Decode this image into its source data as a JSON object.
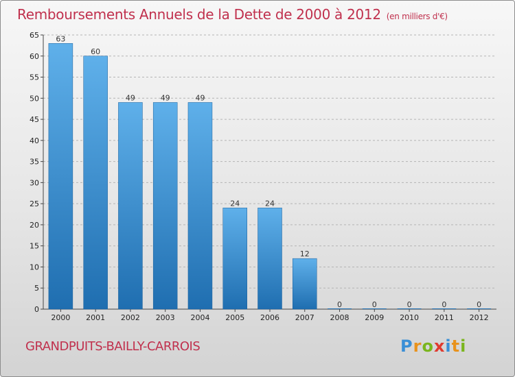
{
  "header": {
    "title": "Remboursements Annuels de la Dette de 2000 à 2012",
    "unit": "(en milliers d'€)"
  },
  "footer": {
    "city": "GRANDPUITS-BAILLY-CARROIS",
    "logo_letters": [
      "P",
      "r",
      "o",
      "x",
      "i",
      "t",
      "i"
    ],
    "logo_colors": [
      "#3a8fd6",
      "#e8921c",
      "#7ab51d",
      "#e03a2f",
      "#3a8fd6",
      "#e8921c",
      "#7ab51d"
    ]
  },
  "colors": {
    "title": "#c0304d",
    "bar_light": "#5fb0ea",
    "bar_dark": "#1f6eb0"
  },
  "chart_data": {
    "type": "bar",
    "categories": [
      "2000",
      "2001",
      "2002",
      "2003",
      "2004",
      "2005",
      "2006",
      "2007",
      "2008",
      "2009",
      "2010",
      "2011",
      "2012"
    ],
    "values": [
      63,
      60,
      49,
      49,
      49,
      24,
      24,
      12,
      0,
      0,
      0,
      0,
      0
    ],
    "ylim": [
      0,
      65
    ],
    "yticks": [
      0,
      5,
      10,
      15,
      20,
      25,
      30,
      35,
      40,
      45,
      50,
      55,
      60,
      65
    ],
    "grid": true
  }
}
